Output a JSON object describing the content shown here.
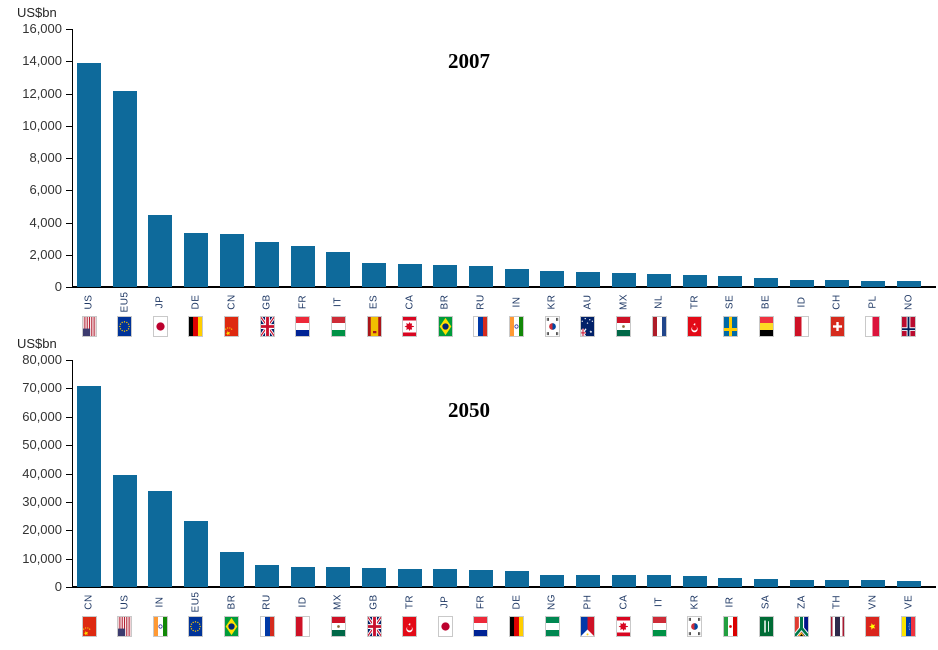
{
  "page": {
    "background": "#ffffff"
  },
  "colors": {
    "bar": "#0e6a9b",
    "category_label": "#1f3864",
    "axis": "#000000",
    "tick_label": "#333333",
    "flag_border": "#c9c9c9"
  },
  "chart_data": [
    {
      "type": "bar",
      "title": "2007",
      "ylabel": "US$bn",
      "ylim": [
        0,
        16000
      ],
      "ytick_interval": 2000,
      "grid": false,
      "legend": "none",
      "yticks": [
        "16,000",
        "14,000",
        "12,000",
        "10,000",
        "8,000",
        "6,000",
        "4,000",
        "2,000",
        "0"
      ],
      "categories": [
        "US",
        "EU5",
        "JP",
        "DE",
        "CN",
        "GB",
        "FR",
        "IT",
        "ES",
        "CA",
        "BR",
        "RU",
        "IN",
        "KR",
        "AU",
        "MX",
        "NL",
        "TR",
        "SE",
        "BE",
        "ID",
        "CH",
        "PL",
        "NO"
      ],
      "values": [
        13900,
        12150,
        4450,
        3350,
        3280,
        2800,
        2550,
        2150,
        1470,
        1450,
        1360,
        1300,
        1100,
        1000,
        950,
        900,
        780,
        750,
        700,
        550,
        430,
        420,
        400,
        380
      ],
      "flag_codes": [
        "us",
        "eu",
        "jp",
        "de",
        "cn",
        "gb",
        "fr",
        "it",
        "es",
        "ca",
        "br",
        "ru",
        "in",
        "kr",
        "au",
        "mx",
        "nl",
        "tr",
        "se",
        "be",
        "id",
        "ch",
        "pl",
        "no"
      ],
      "flag_icons": [
        "us-flag-icon",
        "eu-flag-icon",
        "jp-flag-icon",
        "de-flag-icon",
        "cn-flag-icon",
        "gb-flag-icon",
        "fr-flag-icon",
        "it-flag-icon",
        "es-flag-icon",
        "ca-flag-icon",
        "br-flag-icon",
        "ru-flag-icon",
        "in-flag-icon",
        "kr-flag-icon",
        "au-flag-icon",
        "mx-flag-icon",
        "nl-flag-icon",
        "tr-flag-icon",
        "se-flag-icon",
        "be-flag-icon",
        "id-flag-icon",
        "ch-flag-icon",
        "pl-flag-icon",
        "no-flag-icon"
      ]
    },
    {
      "type": "bar",
      "title": "2050",
      "ylabel": "US$bn",
      "ylim": [
        0,
        80000
      ],
      "ytick_interval": 10000,
      "grid": false,
      "legend": "none",
      "yticks": [
        "80,000",
        "70,000",
        "60,000",
        "50,000",
        "40,000",
        "30,000",
        "20,000",
        "10,000",
        "0"
      ],
      "categories": [
        "CN",
        "US",
        "IN",
        "EU5",
        "BR",
        "RU",
        "ID",
        "MX",
        "GB",
        "TR",
        "JP",
        "FR",
        "DE",
        "NG",
        "PH",
        "CA",
        "IT",
        "KR",
        "IR",
        "SA",
        "ZA",
        "TH",
        "VN",
        "VE"
      ],
      "values": [
        70700,
        39500,
        34000,
        23300,
        12500,
        7600,
        7200,
        7000,
        6700,
        6500,
        6400,
        6000,
        5800,
        4400,
        4300,
        4200,
        4100,
        3900,
        3100,
        2700,
        2600,
        2500,
        2400,
        2300
      ],
      "flag_codes": [
        "cn",
        "us",
        "in",
        "eu",
        "br",
        "ru",
        "id",
        "mx",
        "gb",
        "tr",
        "jp",
        "fr",
        "de",
        "ng",
        "ph",
        "ca",
        "it",
        "kr",
        "ir",
        "sa",
        "za",
        "th",
        "vn",
        "ve"
      ],
      "flag_icons": [
        "cn-flag-icon",
        "us-flag-icon",
        "in-flag-icon",
        "eu-flag-icon",
        "br-flag-icon",
        "ru-flag-icon",
        "id-flag-icon",
        "mx-flag-icon",
        "gb-flag-icon",
        "tr-flag-icon",
        "jp-flag-icon",
        "fr-flag-icon",
        "de-flag-icon",
        "ng-flag-icon",
        "ph-flag-icon",
        "ca-flag-icon",
        "it-flag-icon",
        "kr-flag-icon",
        "ir-flag-icon",
        "sa-flag-icon",
        "za-flag-icon",
        "th-flag-icon",
        "vn-flag-icon",
        "ve-flag-icon"
      ]
    }
  ]
}
